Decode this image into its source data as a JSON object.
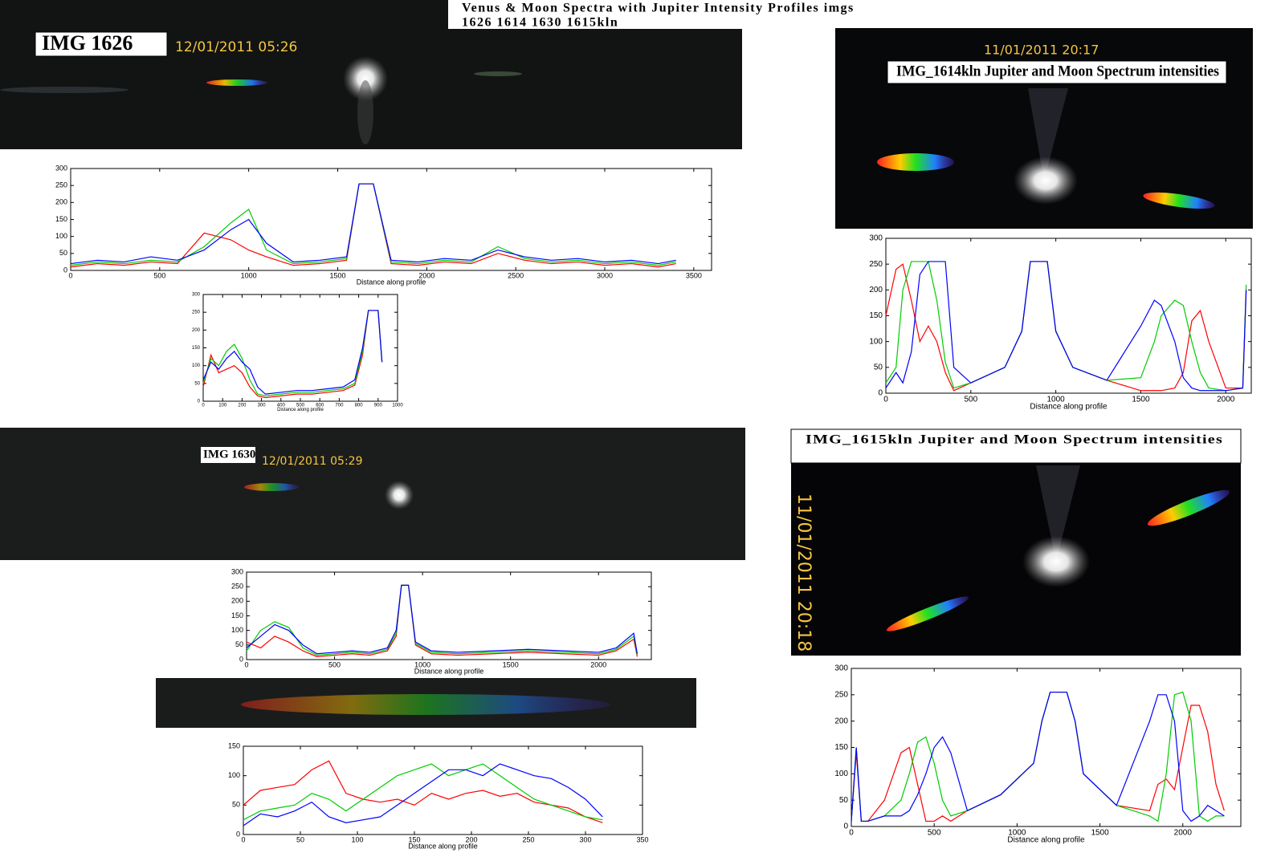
{
  "title": {
    "line1": "Venus  & Moon Spectra with Jupiter Intensity Profiles imgs",
    "line2": "1626 1614 1630 1615kln"
  },
  "images": [
    {
      "label": "IMG 1626",
      "timestamp": "12/01/2011  05:26"
    },
    {
      "timestamp": "11/01/2011  20:17",
      "label": "IMG_1614kln Jupiter and Moon Spectrum intensities"
    },
    {
      "label": "IMG 1630",
      "timestamp": "12/01/2011  05:29"
    },
    {
      "label": "IMG_1615kln Jupiter and Moon Spectrum intensities",
      "timestamp": "11/01/2011 20:18"
    }
  ],
  "chart_data": [
    {
      "type": "line",
      "x_label": "Distance along profile",
      "x": [
        0,
        150,
        300,
        450,
        600,
        750,
        900,
        1000,
        1100,
        1250,
        1400,
        1550,
        1620,
        1700,
        1800,
        1950,
        2100,
        2250,
        2400,
        2550,
        2700,
        2850,
        3000,
        3150,
        3300,
        3400
      ],
      "series": [
        {
          "color": "#ff0000",
          "values": [
            10,
            20,
            15,
            25,
            20,
            110,
            90,
            60,
            40,
            15,
            20,
            30,
            255,
            255,
            20,
            15,
            25,
            20,
            50,
            30,
            20,
            25,
            15,
            20,
            10,
            20
          ]
        },
        {
          "color": "#00cc00",
          "values": [
            15,
            25,
            20,
            30,
            25,
            70,
            140,
            180,
            60,
            20,
            25,
            35,
            255,
            255,
            25,
            20,
            30,
            25,
            70,
            35,
            25,
            30,
            20,
            25,
            15,
            25
          ]
        },
        {
          "color": "#0000ff",
          "values": [
            20,
            30,
            25,
            40,
            30,
            60,
            120,
            150,
            80,
            25,
            30,
            40,
            255,
            255,
            30,
            25,
            35,
            30,
            60,
            40,
            30,
            35,
            25,
            30,
            20,
            30
          ]
        }
      ],
      "xlim": [
        0,
        3600
      ],
      "xticks": [
        0,
        500,
        1000,
        1500,
        2000,
        2500,
        3000,
        3500
      ],
      "ylim": [
        0,
        300
      ],
      "yticks": [
        0,
        50,
        100,
        150,
        200,
        250,
        300
      ]
    },
    {
      "type": "line",
      "x_label": "Distance along profile",
      "x": [
        0,
        40,
        80,
        120,
        160,
        200,
        240,
        280,
        320,
        400,
        480,
        560,
        640,
        720,
        780,
        820,
        850,
        880,
        900,
        920
      ],
      "series": [
        {
          "color": "#ff0000",
          "values": [
            40,
            130,
            80,
            90,
            100,
            80,
            40,
            15,
            10,
            15,
            20,
            20,
            25,
            30,
            45,
            130,
            255,
            255,
            255,
            110
          ]
        },
        {
          "color": "#00cc00",
          "values": [
            50,
            120,
            100,
            140,
            160,
            120,
            60,
            20,
            15,
            20,
            25,
            25,
            30,
            35,
            50,
            140,
            255,
            255,
            255,
            110
          ]
        },
        {
          "color": "#0000ff",
          "values": [
            60,
            110,
            90,
            120,
            140,
            110,
            90,
            40,
            20,
            25,
            30,
            30,
            35,
            40,
            60,
            150,
            255,
            255,
            255,
            110
          ]
        }
      ],
      "xlim": [
        0,
        1000
      ],
      "xticks": [
        0,
        100,
        200,
        300,
        400,
        500,
        600,
        700,
        800,
        900,
        1000
      ],
      "ylim": [
        0,
        300
      ],
      "yticks": [
        0,
        50,
        100,
        150,
        200,
        250,
        300
      ]
    },
    {
      "type": "line",
      "x_label": "Distance along profile",
      "x": [
        0,
        60,
        100,
        150,
        200,
        250,
        300,
        350,
        400,
        500,
        700,
        800,
        850,
        900,
        950,
        1000,
        1100,
        1300,
        1500,
        1580,
        1620,
        1700,
        1750,
        1800,
        1850,
        1900,
        2000,
        2100,
        2120
      ],
      "series": [
        {
          "color": "#ff0000",
          "values": [
            150,
            240,
            250,
            180,
            100,
            130,
            100,
            40,
            5,
            20,
            50,
            120,
            255,
            255,
            255,
            120,
            50,
            25,
            5,
            5,
            5,
            10,
            40,
            140,
            160,
            100,
            10,
            10,
            200
          ]
        },
        {
          "color": "#00cc00",
          "values": [
            20,
            50,
            200,
            255,
            255,
            255,
            180,
            60,
            10,
            20,
            50,
            120,
            255,
            255,
            255,
            120,
            50,
            25,
            30,
            100,
            150,
            180,
            170,
            100,
            40,
            10,
            5,
            10,
            210
          ]
        },
        {
          "color": "#0000ff",
          "values": [
            10,
            40,
            20,
            80,
            230,
            255,
            255,
            255,
            50,
            20,
            50,
            120,
            255,
            255,
            255,
            120,
            50,
            25,
            130,
            180,
            170,
            100,
            30,
            10,
            5,
            5,
            5,
            10,
            200
          ]
        }
      ],
      "xlim": [
        0,
        2150
      ],
      "xticks": [
        0,
        500,
        1000,
        1500,
        2000
      ],
      "ylim": [
        0,
        300
      ],
      "yticks": [
        0,
        50,
        100,
        150,
        200,
        250,
        300
      ]
    },
    {
      "type": "line",
      "x_label": "Distance along profile",
      "x": [
        0,
        80,
        160,
        240,
        320,
        400,
        500,
        600,
        700,
        800,
        850,
        880,
        920,
        960,
        1050,
        1200,
        1400,
        1600,
        1800,
        2000,
        2100,
        2200,
        2220
      ],
      "series": [
        {
          "color": "#ff0000",
          "values": [
            60,
            40,
            80,
            60,
            30,
            10,
            15,
            20,
            15,
            30,
            80,
            255,
            255,
            50,
            20,
            15,
            20,
            25,
            20,
            15,
            30,
            70,
            10
          ]
        },
        {
          "color": "#00cc00",
          "values": [
            30,
            100,
            130,
            110,
            40,
            15,
            20,
            25,
            20,
            35,
            90,
            255,
            255,
            55,
            25,
            20,
            25,
            30,
            25,
            20,
            35,
            80,
            15
          ]
        },
        {
          "color": "#0000ff",
          "values": [
            40,
            80,
            120,
            100,
            50,
            20,
            25,
            30,
            25,
            40,
            100,
            255,
            255,
            60,
            30,
            25,
            30,
            35,
            30,
            25,
            40,
            90,
            20
          ]
        }
      ],
      "xlim": [
        0,
        2300
      ],
      "xticks": [
        0,
        500,
        1000,
        1500,
        2000
      ],
      "ylim": [
        0,
        300
      ],
      "yticks": [
        0,
        50,
        100,
        150,
        200,
        250,
        300
      ]
    },
    {
      "type": "line",
      "x_label": "Distance along profile",
      "x": [
        0,
        15,
        30,
        45,
        60,
        75,
        90,
        105,
        120,
        135,
        150,
        165,
        180,
        195,
        210,
        225,
        240,
        255,
        270,
        285,
        300,
        315
      ],
      "series": [
        {
          "color": "#ff0000",
          "values": [
            50,
            75,
            80,
            85,
            110,
            125,
            70,
            60,
            55,
            60,
            50,
            70,
            60,
            70,
            75,
            65,
            70,
            55,
            50,
            45,
            30,
            20
          ]
        },
        {
          "color": "#00cc00",
          "values": [
            25,
            40,
            45,
            50,
            70,
            60,
            40,
            60,
            80,
            100,
            110,
            120,
            100,
            110,
            120,
            100,
            80,
            60,
            50,
            40,
            30,
            25
          ]
        },
        {
          "color": "#0000ff",
          "values": [
            15,
            35,
            30,
            40,
            55,
            30,
            20,
            25,
            30,
            50,
            70,
            90,
            110,
            110,
            100,
            120,
            110,
            100,
            95,
            80,
            60,
            30
          ]
        }
      ],
      "xlim": [
        0,
        350
      ],
      "xticks": [
        0,
        50,
        100,
        150,
        200,
        250,
        300,
        350
      ],
      "ylim": [
        0,
        150
      ],
      "yticks": [
        0,
        50,
        100,
        150
      ]
    },
    {
      "type": "line",
      "x_label": "Distance along profile",
      "x": [
        0,
        30,
        60,
        100,
        200,
        300,
        350,
        400,
        450,
        500,
        550,
        600,
        700,
        900,
        1100,
        1150,
        1200,
        1300,
        1350,
        1400,
        1600,
        1800,
        1850,
        1900,
        1950,
        2000,
        2050,
        2100,
        2150,
        2200,
        2250
      ],
      "series": [
        {
          "color": "#ff0000",
          "values": [
            10,
            140,
            10,
            10,
            50,
            140,
            150,
            80,
            10,
            10,
            20,
            10,
            30,
            60,
            120,
            200,
            255,
            255,
            200,
            100,
            40,
            30,
            80,
            90,
            70,
            150,
            230,
            230,
            180,
            80,
            30
          ]
        },
        {
          "color": "#00cc00",
          "values": [
            10,
            150,
            10,
            10,
            20,
            50,
            100,
            160,
            170,
            120,
            50,
            20,
            30,
            60,
            120,
            200,
            255,
            255,
            200,
            100,
            40,
            20,
            10,
            100,
            250,
            255,
            200,
            20,
            10,
            20,
            20
          ]
        },
        {
          "color": "#0000ff",
          "values": [
            10,
            150,
            10,
            10,
            20,
            20,
            30,
            60,
            100,
            150,
            170,
            140,
            30,
            60,
            120,
            200,
            255,
            255,
            200,
            100,
            40,
            200,
            250,
            250,
            200,
            30,
            10,
            20,
            40,
            30,
            20
          ]
        }
      ],
      "xlim": [
        0,
        2350
      ],
      "xticks": [
        0,
        500,
        1000,
        1500,
        2000
      ],
      "ylim": [
        0,
        300
      ],
      "yticks": [
        0,
        50,
        100,
        150,
        200,
        250,
        300
      ]
    }
  ]
}
